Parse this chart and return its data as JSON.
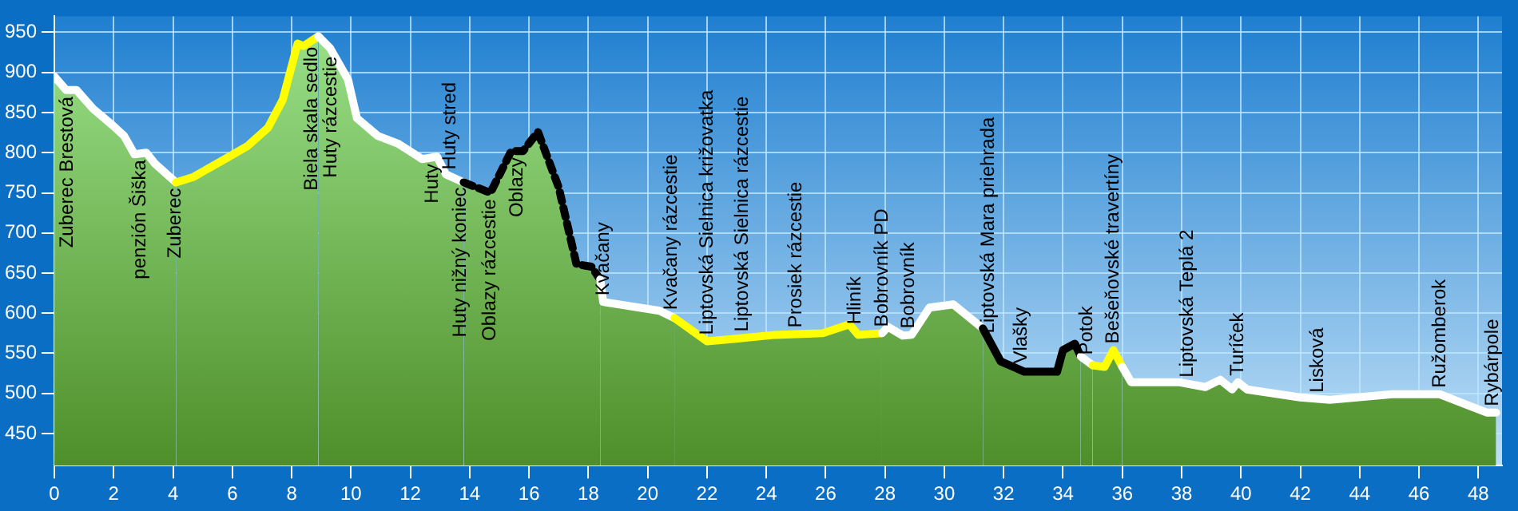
{
  "chart_data": {
    "type": "area",
    "xlim": [
      0,
      48.8
    ],
    "xticks": [
      0,
      2,
      4,
      6,
      8,
      10,
      12,
      14,
      16,
      18,
      20,
      22,
      24,
      26,
      28,
      30,
      32,
      34,
      36,
      38,
      40,
      42,
      44,
      46,
      48
    ],
    "ylim": [
      410,
      970
    ],
    "yticks": [
      450,
      500,
      550,
      600,
      650,
      700,
      750,
      800,
      850,
      900,
      950
    ],
    "grid": true,
    "legend": false,
    "series": [
      {
        "color": "#ffffff",
        "x": [
          0,
          0.4,
          0.75,
          1.3,
          2,
          2.35,
          2.7,
          3.1,
          3.4,
          3.8,
          4.1
        ],
        "values": [
          895,
          878,
          878,
          855,
          833,
          821,
          798,
          800,
          786,
          773,
          763
        ]
      },
      {
        "color": "#ffff00",
        "x": [
          4.1,
          4.7,
          5.6,
          6.5,
          7.2,
          7.7,
          8.2,
          8.4,
          8.9
        ],
        "values": [
          763,
          770,
          789,
          808,
          831,
          866,
          936,
          933,
          945
        ]
      },
      {
        "color": "#ffffff",
        "x": [
          8.9,
          9.3,
          9.9,
          10.2,
          10.9,
          11.6,
          12.4,
          12.9,
          13.2,
          13.8
        ],
        "values": [
          945,
          930,
          891,
          843,
          821,
          811,
          792,
          795,
          773,
          763
        ]
      },
      {
        "color": "#000000",
        "line_style": "dashed",
        "x": [
          13.8,
          14.7,
          15.4,
          15.8,
          16.3,
          17.0,
          17.6,
          18.1,
          18.4
        ],
        "values": [
          763,
          750,
          802,
          802,
          826,
          757,
          661,
          658,
          642
        ]
      },
      {
        "color": "#ffffff",
        "x": [
          18.4,
          18.5,
          20.4,
          20.9
        ],
        "values": [
          642,
          614,
          603,
          594
        ]
      },
      {
        "color": "#ffff00",
        "x": [
          20.9,
          22.0,
          22.9,
          24.3,
          25.9,
          26.8,
          27.1,
          27.9
        ],
        "values": [
          594,
          565,
          568,
          573,
          575,
          586,
          573,
          575
        ]
      },
      {
        "color": "#ffffff",
        "x": [
          27.9,
          28.1,
          28.6,
          28.9,
          29.5,
          30.3,
          31.3
        ],
        "values": [
          575,
          583,
          572,
          573,
          607,
          611,
          581
        ]
      },
      {
        "color": "#000000",
        "x": [
          31.3,
          31.9,
          32.7,
          33.3,
          33.8,
          34.0,
          34.4,
          34.6
        ],
        "values": [
          581,
          540,
          527,
          527,
          527,
          554,
          562,
          546
        ]
      },
      {
        "color": "#ffffff",
        "x": [
          34.6,
          35.0
        ],
        "values": [
          546,
          535
        ]
      },
      {
        "color": "#ffff00",
        "x": [
          35.0,
          35.4,
          35.7,
          36.0
        ],
        "values": [
          535,
          533,
          554,
          533
        ]
      },
      {
        "color": "#ffffff",
        "x": [
          36.0,
          36.3,
          37.9,
          38.8,
          39.3,
          39.7,
          39.9,
          40.2,
          42.0,
          43.0,
          45.1,
          46.7,
          47.6,
          48.3,
          48.6
        ],
        "values": [
          533,
          514,
          514,
          508,
          517,
          505,
          514,
          505,
          495,
          492,
          499,
          499,
          486,
          476,
          476
        ]
      }
    ],
    "annotations": [
      {
        "text": "Zuberec Brestová",
        "x": 0.43,
        "y": 878
      },
      {
        "text": "penzión Šiška",
        "x": 2.9,
        "y": 799
      },
      {
        "text": "Zuberec",
        "x": 4.07,
        "y": 764
      },
      {
        "text": "Biela skala sedlo",
        "x": 8.68,
        "y": 940
      },
      {
        "text": "Huty rázcestie",
        "x": 9.32,
        "y": 928
      },
      {
        "text": "Huty",
        "x": 12.75,
        "y": 794
      },
      {
        "text": "Huty stred",
        "x": 13.34,
        "y": 771
      },
      {
        "text": "Huty nižný koniec",
        "x": 13.7,
        "y": 765
      },
      {
        "text": "Oblazy rázcestie",
        "x": 14.7,
        "y": 750
      },
      {
        "text": "Oblazy",
        "x": 15.6,
        "y": 802
      },
      {
        "text": "Kvačany",
        "x": 18.5,
        "y": 614
      },
      {
        "text": "Kvačany rázcestie",
        "x": 20.8,
        "y": 596
      },
      {
        "text": "Liptovská Sielnica križovatka",
        "x": 22.0,
        "y": 565
      },
      {
        "text": "Liptovská Sielnica rázcestie",
        "x": 23.2,
        "y": 569
      },
      {
        "text": "Prosiek rázcestie",
        "x": 25.0,
        "y": 574
      },
      {
        "text": "Hliník",
        "x": 27.0,
        "y": 578
      },
      {
        "text": "Bobrovník PD",
        "x": 27.9,
        "y": 575
      },
      {
        "text": "Bobrovník",
        "x": 28.8,
        "y": 573
      },
      {
        "text": "Liptovská Mara priehrada",
        "x": 31.5,
        "y": 567
      },
      {
        "text": "Vlašky",
        "x": 32.6,
        "y": 529
      },
      {
        "text": "Potok",
        "x": 34.8,
        "y": 540
      },
      {
        "text": "Bešeňovské travertíny",
        "x": 35.7,
        "y": 554
      },
      {
        "text": "Liptovská Teplá 2",
        "x": 38.2,
        "y": 512
      },
      {
        "text": "Turíček",
        "x": 39.9,
        "y": 514
      },
      {
        "text": "Lisková",
        "x": 42.6,
        "y": 493
      },
      {
        "text": "Ružomberok",
        "x": 46.7,
        "y": 499
      },
      {
        "text": "Rybárpole",
        "x": 48.5,
        "y": 476
      }
    ]
  }
}
